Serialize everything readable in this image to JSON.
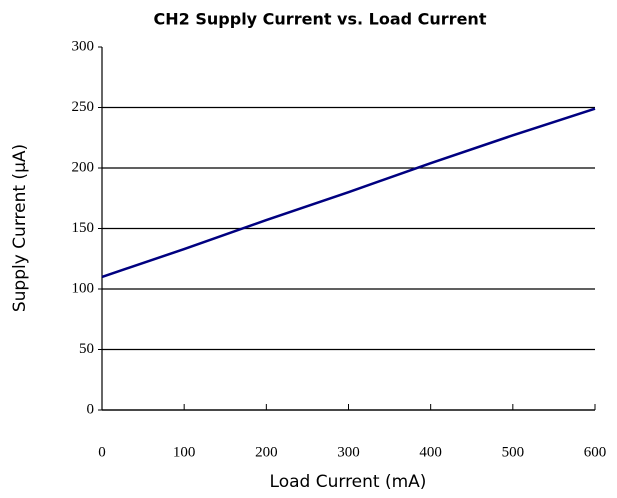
{
  "chart_data": {
    "type": "line",
    "title": "CH2 Supply Current vs. Load Current",
    "xlabel": "Load Current (mA)",
    "ylabel": "Supply Current (µA)",
    "x": [
      0,
      100,
      200,
      300,
      400,
      500,
      600
    ],
    "series": [
      {
        "name": "CH2",
        "color": "#000080",
        "values": [
          110,
          133,
          157,
          180,
          204,
          227,
          249
        ]
      }
    ],
    "xlim": [
      0,
      600
    ],
    "xticks": [
      0,
      100,
      200,
      300,
      400,
      500,
      600
    ],
    "ylim": [
      0,
      300
    ],
    "yticks": [
      0,
      50,
      100,
      150,
      200,
      250,
      300
    ],
    "grid": true
  }
}
